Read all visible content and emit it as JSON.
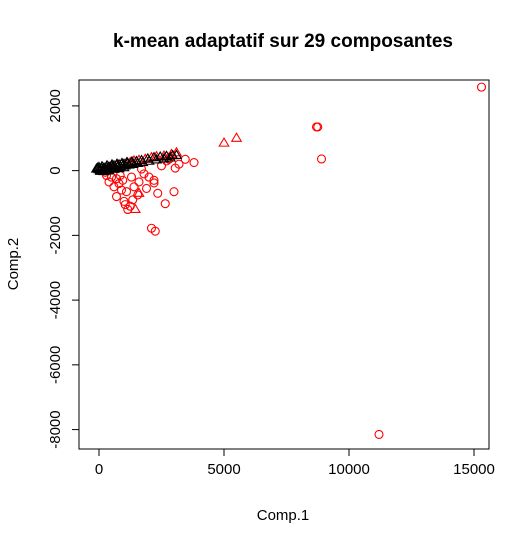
{
  "chart_data": {
    "type": "scatter",
    "title": "k-mean adaptatif sur 29 composantes",
    "xlabel": "Comp.1",
    "ylabel": "Comp.2",
    "xlim": [
      -800,
      15600
    ],
    "ylim": [
      -8600,
      2800
    ],
    "xticks": [
      0,
      5000,
      10000,
      15000
    ],
    "yticks": [
      -8000,
      -6000,
      -4000,
      -2000,
      0,
      2000
    ],
    "grid": false,
    "legend": "none",
    "colors": {
      "cluster_circle": "#ff0000",
      "cluster_triangle_red": "#ff0000",
      "cluster_triangle_black": "#000000"
    },
    "series": [
      {
        "marker": "circle",
        "color": "#ff0000",
        "points": [
          [
            15300,
            2580
          ],
          [
            8700,
            1350
          ],
          [
            8750,
            1350
          ],
          [
            8900,
            360
          ],
          [
            11200,
            -8150
          ],
          [
            3800,
            250
          ],
          [
            3450,
            350
          ],
          [
            3050,
            80
          ],
          [
            3000,
            -650
          ],
          [
            2650,
            -1020
          ],
          [
            2350,
            -700
          ],
          [
            2200,
            -380
          ],
          [
            2250,
            -1870
          ],
          [
            2100,
            -1780
          ],
          [
            2000,
            -200
          ],
          [
            1800,
            -100
          ],
          [
            1600,
            -350
          ],
          [
            1550,
            -750
          ],
          [
            1350,
            -900
          ],
          [
            1250,
            -1100
          ],
          [
            1150,
            -1200
          ],
          [
            1000,
            -950
          ],
          [
            900,
            -600
          ],
          [
            800,
            -400
          ],
          [
            700,
            -250
          ],
          [
            600,
            -500
          ],
          [
            500,
            -200
          ],
          [
            400,
            -350
          ],
          [
            300,
            -150
          ],
          [
            250,
            -50
          ],
          [
            1900,
            -550
          ],
          [
            2200,
            -300
          ],
          [
            1400,
            -500
          ],
          [
            1100,
            -650
          ],
          [
            2700,
            300
          ],
          [
            2900,
            450
          ],
          [
            2500,
            150
          ],
          [
            1700,
            50
          ],
          [
            1300,
            -200
          ],
          [
            950,
            -300
          ],
          [
            700,
            -800
          ],
          [
            1050,
            -1050
          ],
          [
            850,
            -150
          ],
          [
            2800,
            350
          ],
          [
            3200,
            200
          ]
        ]
      },
      {
        "marker": "triangle",
        "color": "#ff0000",
        "points": [
          [
            5500,
            1000
          ],
          [
            5000,
            850
          ],
          [
            3100,
            550
          ],
          [
            2900,
            500
          ],
          [
            2600,
            450
          ],
          [
            2300,
            430
          ],
          [
            2100,
            400
          ],
          [
            1850,
            350
          ],
          [
            1600,
            320
          ],
          [
            1400,
            300
          ],
          [
            1250,
            250
          ],
          [
            1100,
            230
          ],
          [
            900,
            200
          ],
          [
            700,
            150
          ],
          [
            500,
            120
          ],
          [
            1450,
            -1200
          ],
          [
            1600,
            -700
          ]
        ]
      },
      {
        "marker": "triangle",
        "color": "#000000",
        "points": [
          [
            -100,
            50
          ],
          [
            0,
            30
          ],
          [
            100,
            60
          ],
          [
            200,
            80
          ],
          [
            300,
            100
          ],
          [
            400,
            110
          ],
          [
            500,
            140
          ],
          [
            600,
            150
          ],
          [
            700,
            170
          ],
          [
            800,
            180
          ],
          [
            900,
            190
          ],
          [
            1000,
            200
          ],
          [
            1150,
            220
          ],
          [
            1300,
            240
          ],
          [
            1500,
            280
          ],
          [
            1700,
            310
          ],
          [
            1950,
            360
          ],
          [
            2200,
            400
          ],
          [
            2450,
            420
          ],
          [
            2700,
            440
          ],
          [
            2950,
            460
          ],
          [
            50,
            -20
          ],
          [
            150,
            0
          ],
          [
            250,
            20
          ],
          [
            350,
            30
          ],
          [
            450,
            60
          ],
          [
            550,
            70
          ],
          [
            650,
            90
          ],
          [
            750,
            110
          ],
          [
            850,
            120
          ],
          [
            950,
            140
          ],
          [
            1050,
            150
          ],
          [
            1200,
            170
          ],
          [
            1350,
            190
          ],
          [
            1550,
            220
          ],
          [
            1750,
            250
          ],
          [
            2000,
            290
          ],
          [
            2300,
            330
          ],
          [
            2600,
            360
          ],
          [
            2850,
            390
          ],
          [
            3100,
            470
          ],
          [
            -50,
            80
          ],
          [
            120,
            120
          ],
          [
            320,
            150
          ],
          [
            520,
            180
          ],
          [
            720,
            200
          ],
          [
            920,
            220
          ],
          [
            1120,
            250
          ],
          [
            1320,
            270
          ],
          [
            0,
            100
          ],
          [
            200,
            -30
          ],
          [
            400,
            -10
          ],
          [
            600,
            40
          ],
          [
            800,
            60
          ],
          [
            1000,
            90
          ],
          [
            60,
            10
          ],
          [
            260,
            60
          ],
          [
            460,
            90
          ]
        ]
      }
    ]
  }
}
